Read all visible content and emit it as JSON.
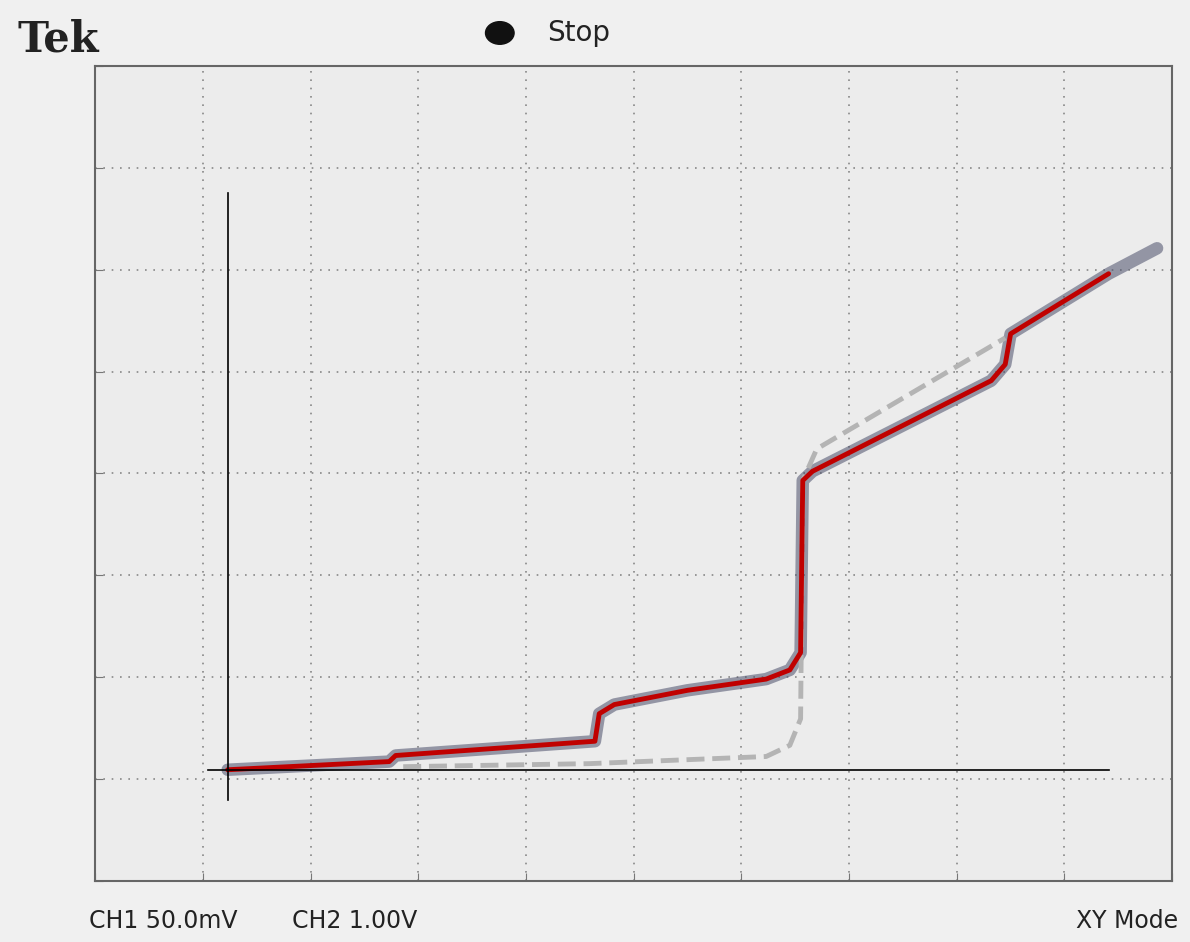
{
  "chart_data": {
    "type": "line",
    "annotations": [
      "Tek",
      "Stop",
      "CH1 50.0mV",
      "CH2 1.00V",
      "XY Mode"
    ],
    "xlim": [
      -5,
      5
    ],
    "ylim": [
      -4,
      4
    ],
    "xticks": [
      -5,
      -4,
      -3,
      -2,
      -1,
      0,
      1,
      2,
      3,
      4,
      5
    ],
    "yticks": [
      -4,
      -3,
      -2,
      -1,
      0,
      1,
      2,
      3,
      4
    ],
    "grid": true,
    "tick_labels": false,
    "reference_lines": {
      "hline": {
        "y": -2.91,
        "x": [
          -3.95,
          4.41
        ]
      },
      "vline": {
        "x": -3.77,
        "y": [
          -3.21,
          2.75
        ]
      },
      "color": "#000000"
    },
    "series": [
      {
        "color": "#4a4e6a",
        "line_style": "solid",
        "x": [
          -3.77,
          -2.27,
          -2.21,
          -0.36,
          -0.32,
          -0.18,
          0.5,
          1.23,
          1.45,
          1.55,
          1.57,
          1.66,
          3.32,
          3.45,
          3.5,
          4.41,
          4.86
        ],
        "values": [
          -2.91,
          -2.83,
          -2.77,
          -2.63,
          -2.36,
          -2.27,
          -2.13,
          -2.02,
          -1.93,
          -1.76,
          -0.07,
          0.02,
          0.91,
          1.07,
          1.37,
          1.96,
          2.21
        ]
      },
      {
        "color": "#b4b4b4",
        "line_style": "dashed",
        "x": [
          -2.14,
          -0.41,
          1.23,
          1.45,
          1.55,
          1.57,
          1.7,
          3.45
        ],
        "values": [
          -2.88,
          -2.85,
          -2.78,
          -2.67,
          -2.41,
          -0.07,
          0.24,
          1.33
        ]
      },
      {
        "color": "#c00000",
        "line_style": "solid",
        "x": [
          -3.77,
          -2.27,
          -2.21,
          -0.36,
          -0.32,
          -0.18,
          0.5,
          1.23,
          1.45,
          1.55,
          1.57,
          1.66,
          3.32,
          3.45,
          3.5,
          4.41
        ],
        "values": [
          -2.91,
          -2.83,
          -2.77,
          -2.63,
          -2.36,
          -2.27,
          -2.13,
          -2.02,
          -1.93,
          -1.76,
          -0.07,
          0.02,
          0.91,
          1.07,
          1.37,
          1.96
        ]
      }
    ]
  }
}
